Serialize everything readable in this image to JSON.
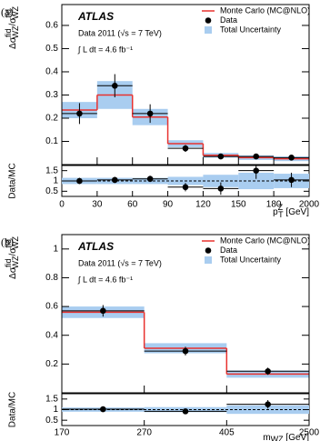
{
  "chart_data": [
    {
      "type": "histogram",
      "panel_label": "(a)",
      "atlas": "ATLAS",
      "energy_text": "Data 2011 (√s = 7 TeV)",
      "lumi_text": "∫ L dt = 4.6 fb⁻¹",
      "y_label": {
        "num_base": "Δσ",
        "num_sup": "fid",
        "num_sub": "WZ",
        "den_base": "/σ",
        "den_sup": "fid",
        "den_sub": "WZ"
      },
      "x_label": {
        "base": "p",
        "sup": "Z",
        "sub": "T",
        "unit": " [GeV]"
      },
      "bins": [
        0,
        30,
        60,
        90,
        120,
        150,
        180,
        2000
      ],
      "ylim": [
        0,
        0.69
      ],
      "yticks": [
        0.1,
        0.2,
        0.3,
        0.4,
        0.5,
        0.6
      ],
      "legend": "upper right",
      "series": [
        {
          "name": "Monte Carlo (MC@NLO)",
          "color": "#e8322f",
          "values": [
            0.235,
            0.3,
            0.205,
            0.09,
            0.04,
            0.03,
            0.025
          ]
        },
        {
          "name": "Data",
          "color": "#000000",
          "values": [
            0.22,
            0.34,
            0.22,
            0.07,
            0.035,
            0.035,
            0.03
          ],
          "errors": [
            0.045,
            0.05,
            0.04,
            0.015,
            0.01,
            0.01,
            0.01
          ]
        }
      ],
      "uncertainty": {
        "name": "Total Uncertainty",
        "color": "#a9cdf0",
        "values": [
          0.035,
          0.06,
          0.035,
          0.015,
          0.01,
          0.01,
          0.01
        ]
      },
      "ratio": {
        "y_label": "Data/MC",
        "ylim": [
          0.25,
          1.75
        ],
        "yticks": [
          0.5,
          1,
          1.5
        ],
        "reference": 1,
        "values": [
          1.0,
          1.05,
          1.1,
          0.7,
          0.63,
          1.5,
          1.05
        ],
        "errors": [
          0.15,
          0.15,
          0.15,
          0.2,
          0.3,
          0.4,
          0.35
        ],
        "band": [
          0.15,
          0.15,
          0.15,
          0.2,
          0.3,
          0.4,
          0.35
        ]
      }
    },
    {
      "type": "histogram",
      "panel_label": "(b)",
      "atlas": "ATLAS",
      "energy_text": "Data 2011 (√s = 7 TeV)",
      "lumi_text": "∫ L dt = 4.6 fb⁻¹",
      "y_label": {
        "num_base": "Δσ",
        "num_sup": "fid",
        "num_sub": "WZ",
        "den_base": "/σ",
        "den_sup": "fid",
        "den_sub": "WZ"
      },
      "x_label": {
        "base": "m",
        "sub": "WZ",
        "unit": " [GeV]"
      },
      "bins": [
        170,
        270,
        405,
        2500
      ],
      "ylim": [
        0,
        1.1
      ],
      "yticks": [
        0.2,
        0.4,
        0.6,
        0.8,
        1
      ],
      "legend": "upper right",
      "series": [
        {
          "name": "Monte Carlo (MC@NLO)",
          "color": "#e8322f",
          "values": [
            0.56,
            0.31,
            0.13
          ]
        },
        {
          "name": "Data",
          "color": "#000000",
          "values": [
            0.57,
            0.29,
            0.15
          ],
          "errors": [
            0.04,
            0.03,
            0.025
          ]
        }
      ],
      "uncertainty": {
        "name": "Total Uncertainty",
        "color": "#a9cdf0",
        "values": [
          0.04,
          0.035,
          0.025
        ]
      },
      "ratio": {
        "y_label": "Data/MC",
        "ylim": [
          0.25,
          1.75
        ],
        "yticks": [
          0.5,
          1,
          1.5
        ],
        "reference": 1,
        "values": [
          1.02,
          0.92,
          1.25
        ],
        "errors": [
          0.1,
          0.12,
          0.2
        ],
        "band": [
          0.1,
          0.12,
          0.2
        ]
      }
    }
  ]
}
